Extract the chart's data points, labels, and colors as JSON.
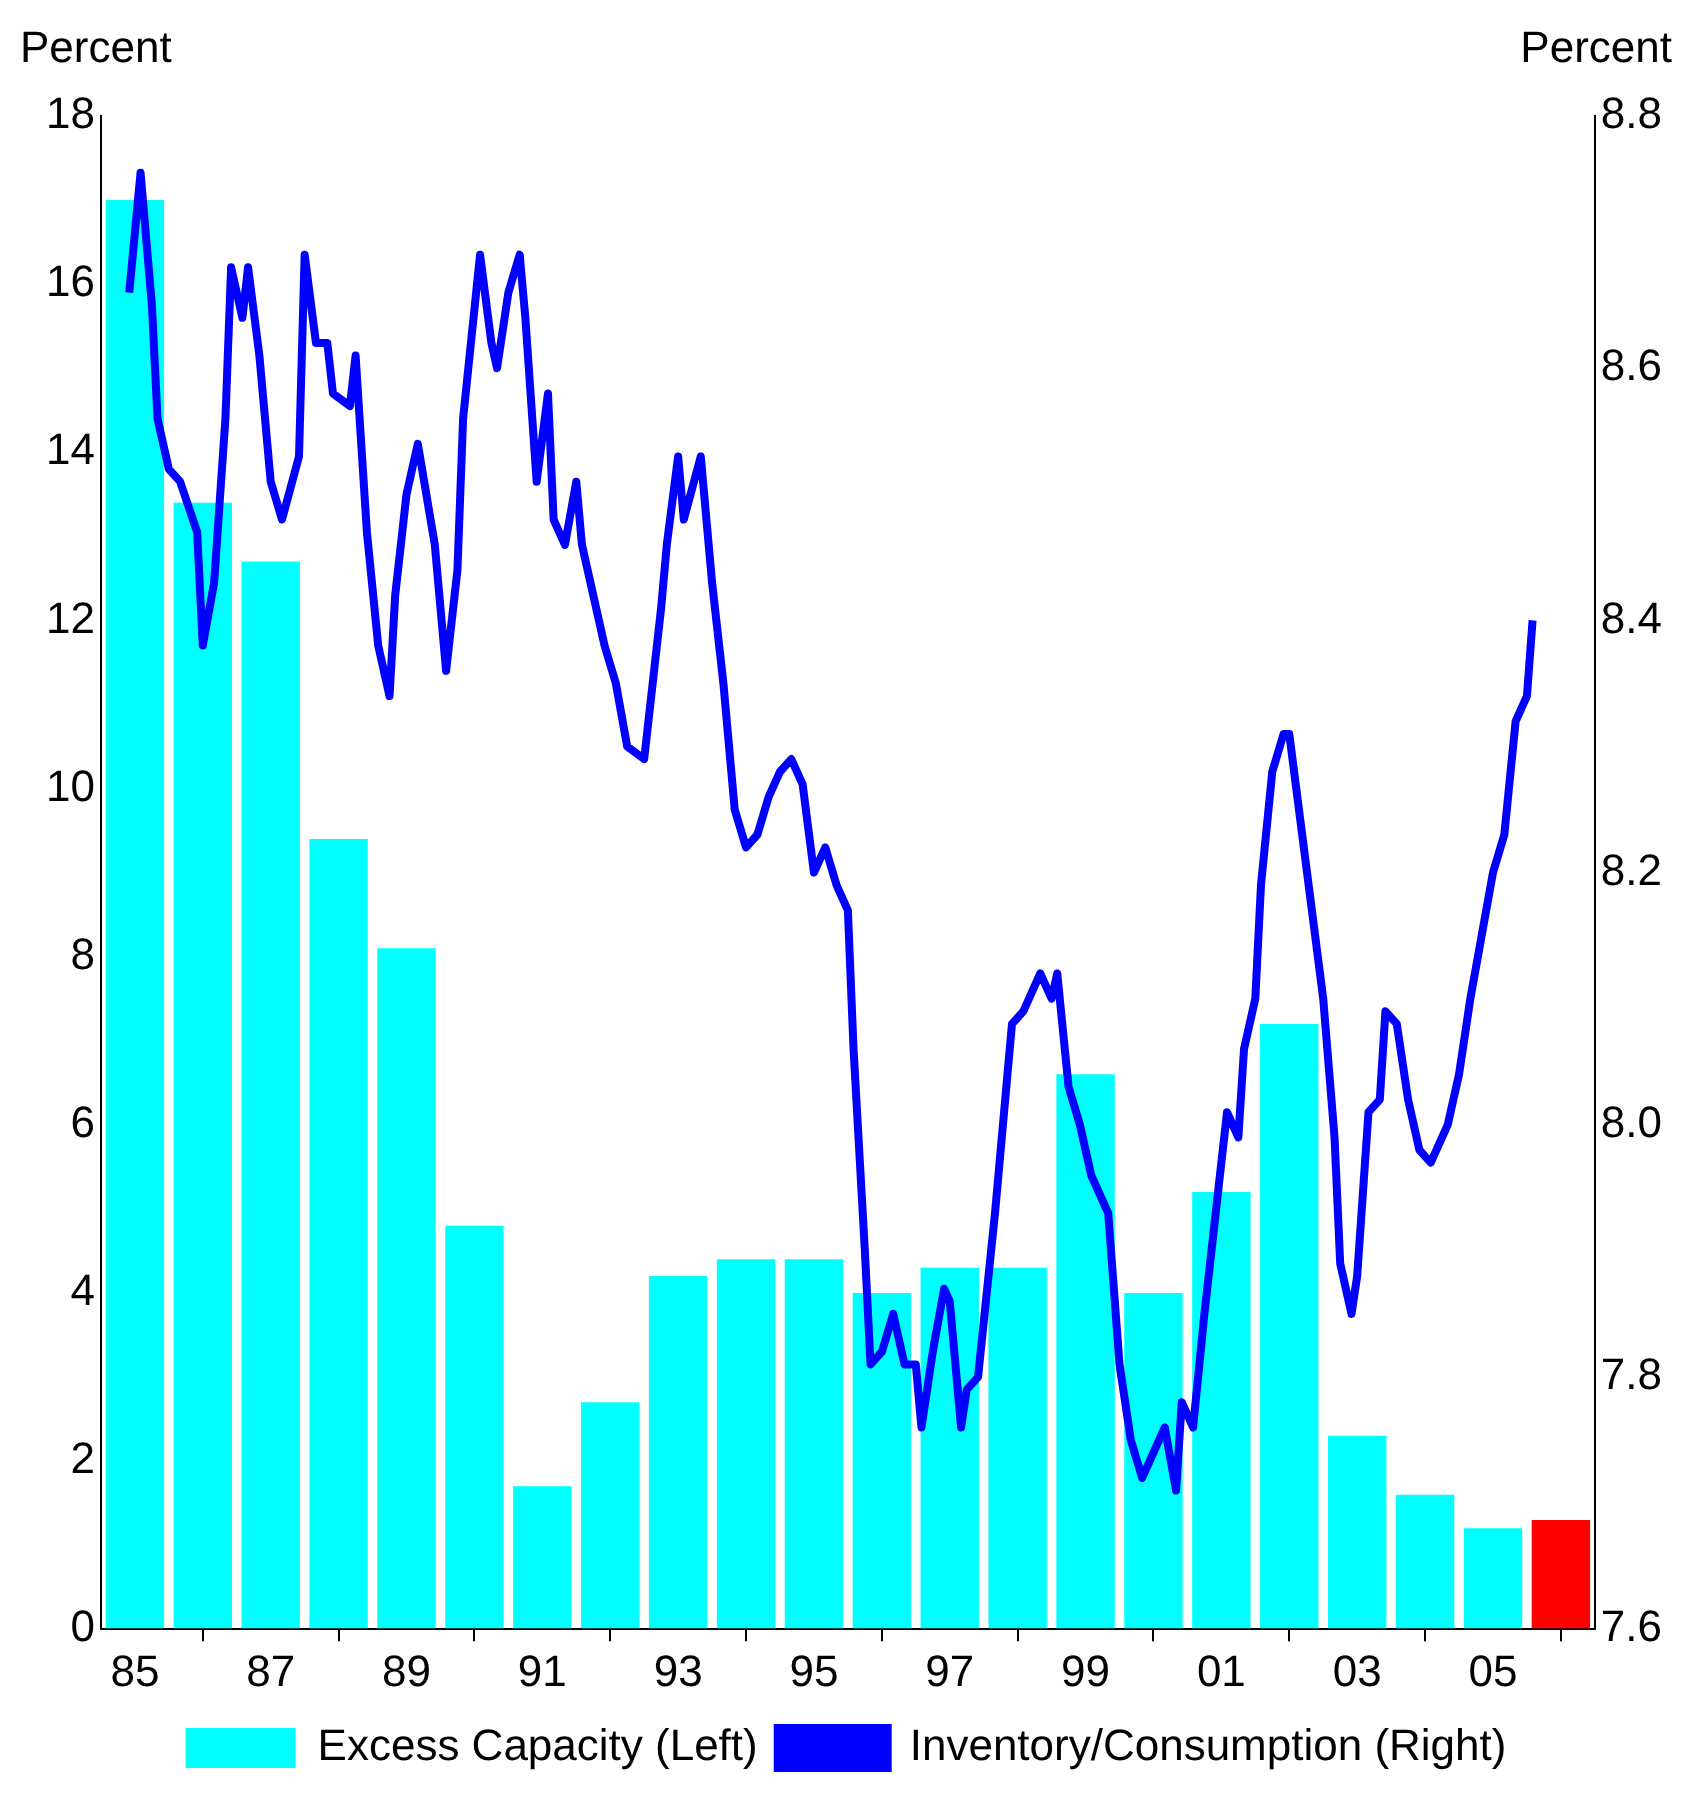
{
  "chart_data": {
    "type": "bar",
    "ylabel": "Percent",
    "y2label": "Percent",
    "x": [
      "1985",
      "1986",
      "1987",
      "1988",
      "1989",
      "1990",
      "1991",
      "1992",
      "1993",
      "1994",
      "1995",
      "1996",
      "1997",
      "1998",
      "1999",
      "2000",
      "2001",
      "2002",
      "2003",
      "2004",
      "2005",
      "2006"
    ],
    "xlim": [
      "1984-07",
      "2006-07"
    ],
    "xticks": [
      {
        "value": "1985",
        "label": "85"
      },
      {
        "value": "1987",
        "label": "87"
      },
      {
        "value": "1989",
        "label": "89"
      },
      {
        "value": "1991",
        "label": "91"
      },
      {
        "value": "1993",
        "label": "93"
      },
      {
        "value": "1995",
        "label": "95"
      },
      {
        "value": "1997",
        "label": "97"
      },
      {
        "value": "1999",
        "label": "99"
      },
      {
        "value": "2001",
        "label": "01"
      },
      {
        "value": "2003",
        "label": "03"
      },
      {
        "value": "2005",
        "label": "05"
      }
    ],
    "ylim": [
      0,
      18
    ],
    "yticks": [
      0,
      2,
      4,
      6,
      8,
      10,
      12,
      14,
      16,
      18
    ],
    "y2lim": [
      7.6,
      8.8
    ],
    "y2ticks": [
      {
        "value": 7.6,
        "label": "7.6"
      },
      {
        "value": 7.8,
        "label": "7.8"
      },
      {
        "value": 8.0,
        "label": "8.0"
      },
      {
        "value": 8.2,
        "label": "8.2"
      },
      {
        "value": 8.4,
        "label": "8.4"
      },
      {
        "value": 8.6,
        "label": "8.6"
      },
      {
        "value": 8.8,
        "label": "8.8"
      }
    ],
    "grid": false,
    "legend": "bottom",
    "series": [
      {
        "name": "Excess Capacity (Left)",
        "color": "#00ffff",
        "colors": [
          "#00ffff",
          "#00ffff",
          "#00ffff",
          "#00ffff",
          "#00ffff",
          "#00ffff",
          "#00ffff",
          "#00ffff",
          "#00ffff",
          "#00ffff",
          "#00ffff",
          "#00ffff",
          "#00ffff",
          "#00ffff",
          "#00ffff",
          "#00ffff",
          "#00ffff",
          "#00ffff",
          "#00ffff",
          "#00ffff",
          "#00ffff",
          "#ff0000"
        ],
        "values": [
          17.0,
          13.4,
          12.7,
          9.4,
          8.1,
          4.8,
          1.7,
          2.7,
          4.2,
          4.4,
          4.4,
          4.0,
          4.3,
          4.3,
          6.6,
          4.0,
          5.2,
          7.2,
          2.3,
          1.6,
          1.2,
          1.3
        ]
      },
      {
        "name": "Inventory/Consumption (Right)",
        "type": "line",
        "axis": "y2",
        "color": "#0000ff",
        "marker": "none",
        "line_style": "solid",
        "x": [
          "1984-12",
          "1985-02",
          "1985-04",
          "1985-05",
          "1985-07",
          "1985-09",
          "1985-12",
          "1986-01",
          "1986-03",
          "1986-05",
          "1986-06",
          "1986-08",
          "1986-09",
          "1986-11",
          "1987-01",
          "1987-03",
          "1987-06",
          "1987-07",
          "1987-09",
          "1987-11",
          "1987-12",
          "1988-03",
          "1988-04",
          "1988-06",
          "1988-08",
          "1988-10",
          "1988-11",
          "1989-01",
          "1989-03",
          "1989-06",
          "1989-08",
          "1989-10",
          "1989-11",
          "1990-02",
          "1990-04",
          "1990-05",
          "1990-07",
          "1990-09",
          "1990-10",
          "1990-12",
          "1991-02",
          "1991-03",
          "1991-05",
          "1991-07",
          "1991-08",
          "1991-10",
          "1991-12",
          "1992-02",
          "1992-04",
          "1992-07",
          "1992-10",
          "1992-11",
          "1993-01",
          "1993-02",
          "1993-05",
          "1993-07",
          "1993-09",
          "1993-11",
          "1994-01",
          "1994-03",
          "1994-05",
          "1994-07",
          "1994-09",
          "1994-11",
          "1995-01",
          "1995-03",
          "1995-05",
          "1995-07",
          "1995-08",
          "1995-10",
          "1995-11",
          "1996-01",
          "1996-03",
          "1996-05",
          "1996-07",
          "1996-08",
          "1996-10",
          "1996-12",
          "1997-01",
          "1997-03",
          "1997-04",
          "1997-06",
          "1997-09",
          "1997-12",
          "1998-02",
          "1998-05",
          "1998-07",
          "1998-08",
          "1998-10",
          "1998-12",
          "1999-02",
          "1999-05",
          "1999-07",
          "1999-09",
          "1999-11",
          "2000-01",
          "2000-03",
          "2000-05",
          "2000-06",
          "2000-08",
          "2000-10",
          "2000-12",
          "2001-02",
          "2001-04",
          "2001-05",
          "2001-07",
          "2001-08",
          "2001-10",
          "2001-12",
          "2002-01",
          "2002-03",
          "2002-05",
          "2002-07",
          "2002-09",
          "2002-10",
          "2002-12",
          "2003-01",
          "2003-03",
          "2003-05",
          "2003-06",
          "2003-08",
          "2003-10",
          "2003-12",
          "2004-02",
          "2004-05",
          "2004-07",
          "2004-09",
          "2004-11",
          "2005-01",
          "2005-03",
          "2005-05",
          "2005-07",
          "2005-08"
        ],
        "values": [
          8.66,
          8.755,
          8.65,
          8.56,
          8.52,
          8.51,
          8.47,
          8.38,
          8.43,
          8.56,
          8.68,
          8.64,
          8.68,
          8.61,
          8.51,
          8.48,
          8.53,
          8.69,
          8.62,
          8.62,
          8.58,
          8.57,
          8.61,
          8.47,
          8.38,
          8.34,
          8.42,
          8.5,
          8.54,
          8.46,
          8.36,
          8.44,
          8.56,
          8.69,
          8.62,
          8.6,
          8.66,
          8.69,
          8.64,
          8.51,
          8.58,
          8.48,
          8.46,
          8.51,
          8.46,
          8.42,
          8.38,
          8.35,
          8.3,
          8.29,
          8.41,
          8.46,
          8.53,
          8.48,
          8.53,
          8.43,
          8.35,
          8.25,
          8.22,
          8.23,
          8.26,
          8.28,
          8.29,
          8.27,
          8.2,
          8.22,
          8.19,
          8.17,
          8.06,
          7.9,
          7.81,
          7.82,
          7.85,
          7.81,
          7.81,
          7.76,
          7.82,
          7.87,
          7.86,
          7.76,
          7.79,
          7.8,
          7.93,
          8.08,
          8.09,
          8.12,
          8.1,
          8.12,
          8.03,
          8.0,
          7.96,
          7.93,
          7.81,
          7.75,
          7.72,
          7.74,
          7.76,
          7.71,
          7.78,
          7.76,
          7.85,
          7.93,
          8.01,
          7.99,
          8.06,
          8.1,
          8.19,
          8.28,
          8.31,
          8.31,
          8.24,
          8.17,
          8.1,
          7.99,
          7.89,
          7.85,
          7.88,
          8.01,
          8.02,
          8.09,
          8.08,
          8.02,
          7.98,
          7.97,
          8.0,
          8.04,
          8.1,
          8.15,
          8.2,
          8.23,
          8.32,
          8.34,
          8.4
        ]
      }
    ]
  }
}
